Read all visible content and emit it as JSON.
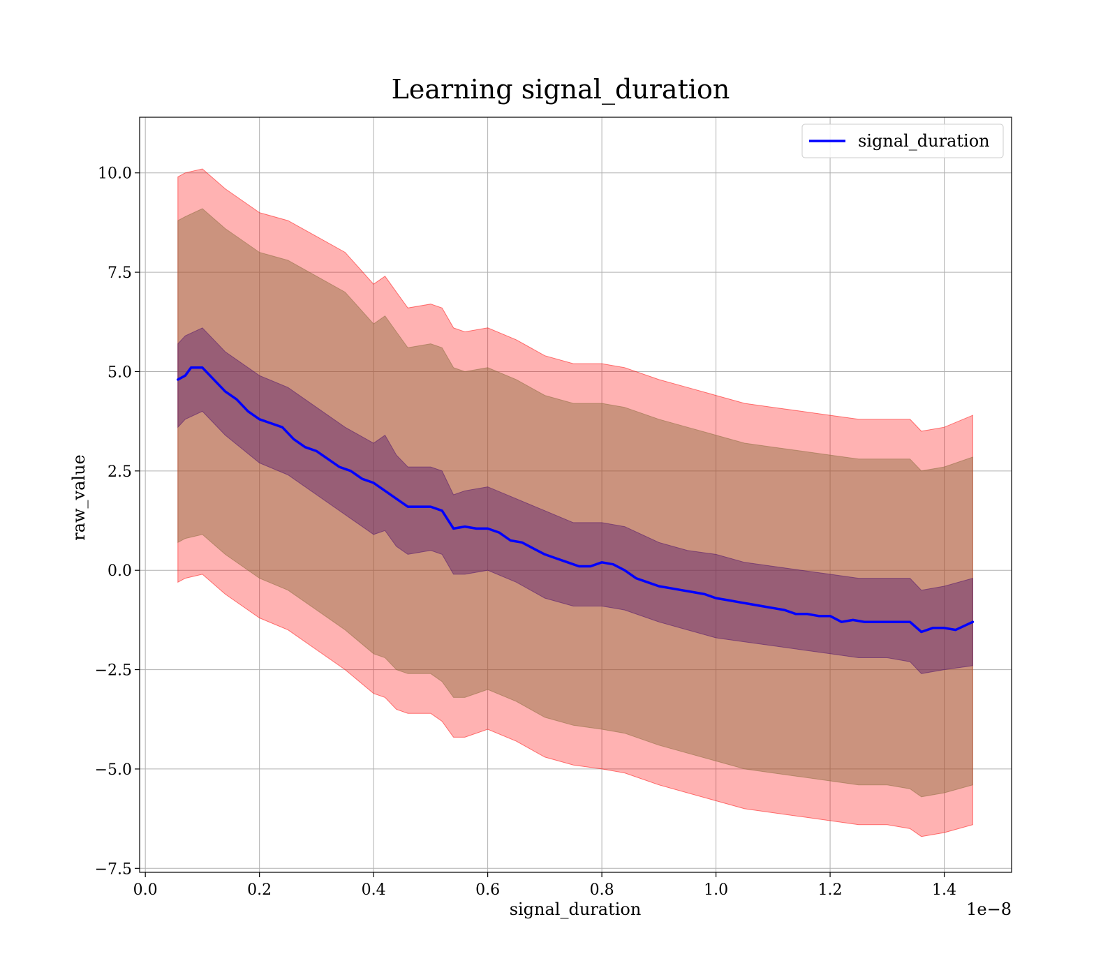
{
  "chart_data": {
    "type": "line",
    "title": "Learning signal_duration",
    "xlabel": "signal_duration",
    "ylabel": "raw_value",
    "x_offset_label": "1e−8",
    "xlim": [
      -0.01,
      1.518
    ],
    "ylim": [
      -7.6,
      11.4
    ],
    "x_ticks": [
      0.0,
      0.2,
      0.4,
      0.6,
      0.8,
      1.0,
      1.2,
      1.4
    ],
    "x_tick_labels": [
      "0.0",
      "0.2",
      "0.4",
      "0.6",
      "0.8",
      "1.0",
      "1.2",
      "1.4"
    ],
    "y_ticks": [
      -7.5,
      -5.0,
      -2.5,
      0.0,
      2.5,
      5.0,
      7.5,
      10.0
    ],
    "y_tick_labels": [
      "−7.5",
      "−5.0",
      "−2.5",
      "0.0",
      "2.5",
      "5.0",
      "7.5",
      "10.0"
    ],
    "grid": true,
    "legend": {
      "placement": "top-right",
      "entries": [
        "signal_duration"
      ]
    },
    "colors": {
      "mean_line": "#0000ff",
      "outer_band": "#ff0000",
      "middle_band": "#8b6c3e",
      "inner_band": "#4b0f6b",
      "grid": "#b0b0b0"
    },
    "series": [
      {
        "name": "signal_duration",
        "x": [
          0.057,
          0.07,
          0.08,
          0.1,
          0.12,
          0.14,
          0.16,
          0.18,
          0.2,
          0.22,
          0.24,
          0.26,
          0.28,
          0.3,
          0.32,
          0.34,
          0.36,
          0.38,
          0.4,
          0.42,
          0.44,
          0.46,
          0.48,
          0.5,
          0.52,
          0.54,
          0.56,
          0.58,
          0.6,
          0.62,
          0.64,
          0.66,
          0.68,
          0.7,
          0.72,
          0.74,
          0.76,
          0.78,
          0.8,
          0.82,
          0.84,
          0.86,
          0.88,
          0.9,
          0.92,
          0.94,
          0.96,
          0.98,
          1.0,
          1.02,
          1.04,
          1.06,
          1.08,
          1.1,
          1.12,
          1.14,
          1.16,
          1.18,
          1.2,
          1.22,
          1.24,
          1.26,
          1.28,
          1.3,
          1.32,
          1.34,
          1.36,
          1.38,
          1.4,
          1.42,
          1.45
        ],
        "y": [
          4.8,
          4.9,
          5.1,
          5.1,
          4.8,
          4.5,
          4.3,
          4.0,
          3.8,
          3.7,
          3.6,
          3.3,
          3.1,
          3.0,
          2.8,
          2.6,
          2.5,
          2.3,
          2.2,
          2.0,
          1.8,
          1.6,
          1.6,
          1.6,
          1.5,
          1.05,
          1.1,
          1.05,
          1.05,
          0.95,
          0.75,
          0.7,
          0.55,
          0.4,
          0.3,
          0.2,
          0.1,
          0.1,
          0.2,
          0.15,
          0.0,
          -0.2,
          -0.3,
          -0.4,
          -0.45,
          -0.5,
          -0.55,
          -0.6,
          -0.7,
          -0.75,
          -0.8,
          -0.85,
          -0.9,
          -0.95,
          -1.0,
          -1.1,
          -1.1,
          -1.15,
          -1.15,
          -1.3,
          -1.25,
          -1.3,
          -1.3,
          -1.3,
          -1.3,
          -1.3,
          -1.55,
          -1.45,
          -1.45,
          -1.5,
          -1.3
        ]
      }
    ],
    "bands": [
      {
        "label": "outer",
        "x": [
          0.057,
          0.07,
          0.1,
          0.14,
          0.2,
          0.25,
          0.3,
          0.35,
          0.4,
          0.42,
          0.44,
          0.46,
          0.5,
          0.52,
          0.54,
          0.56,
          0.6,
          0.65,
          0.7,
          0.75,
          0.8,
          0.84,
          0.9,
          0.95,
          1.0,
          1.05,
          1.1,
          1.15,
          1.2,
          1.25,
          1.3,
          1.34,
          1.36,
          1.4,
          1.45
        ],
        "upper": [
          9.9,
          10.0,
          10.1,
          9.6,
          9.0,
          8.8,
          8.4,
          8.0,
          7.2,
          7.4,
          7.0,
          6.6,
          6.7,
          6.6,
          6.1,
          6.0,
          6.1,
          5.8,
          5.4,
          5.2,
          5.2,
          5.1,
          4.8,
          4.6,
          4.4,
          4.2,
          4.1,
          4.0,
          3.9,
          3.8,
          3.8,
          3.8,
          3.5,
          3.6,
          3.9
        ],
        "lower": [
          -0.3,
          -0.2,
          -0.1,
          -0.6,
          -1.2,
          -1.5,
          -2.0,
          -2.5,
          -3.1,
          -3.2,
          -3.5,
          -3.6,
          -3.6,
          -3.8,
          -4.2,
          -4.2,
          -4.0,
          -4.3,
          -4.7,
          -4.9,
          -5.0,
          -5.1,
          -5.4,
          -5.6,
          -5.8,
          -6.0,
          -6.1,
          -6.2,
          -6.3,
          -6.4,
          -6.4,
          -6.5,
          -6.7,
          -6.6,
          -6.4
        ]
      },
      {
        "label": "middle",
        "x": [
          0.057,
          0.07,
          0.1,
          0.14,
          0.2,
          0.25,
          0.3,
          0.35,
          0.4,
          0.42,
          0.44,
          0.46,
          0.5,
          0.52,
          0.54,
          0.56,
          0.6,
          0.65,
          0.7,
          0.75,
          0.8,
          0.84,
          0.9,
          0.95,
          1.0,
          1.05,
          1.1,
          1.15,
          1.2,
          1.25,
          1.3,
          1.34,
          1.36,
          1.4,
          1.45
        ],
        "upper": [
          8.8,
          8.9,
          9.1,
          8.6,
          8.0,
          7.8,
          7.4,
          7.0,
          6.2,
          6.4,
          6.0,
          5.6,
          5.7,
          5.6,
          5.1,
          5.0,
          5.1,
          4.8,
          4.4,
          4.2,
          4.2,
          4.1,
          3.8,
          3.6,
          3.4,
          3.2,
          3.1,
          3.0,
          2.9,
          2.8,
          2.8,
          2.8,
          2.5,
          2.6,
          2.85
        ],
        "lower": [
          0.7,
          0.8,
          0.9,
          0.4,
          -0.2,
          -0.5,
          -1.0,
          -1.5,
          -2.1,
          -2.2,
          -2.5,
          -2.6,
          -2.6,
          -2.8,
          -3.2,
          -3.2,
          -3.0,
          -3.3,
          -3.7,
          -3.9,
          -4.0,
          -4.1,
          -4.4,
          -4.6,
          -4.8,
          -5.0,
          -5.1,
          -5.2,
          -5.3,
          -5.4,
          -5.4,
          -5.5,
          -5.7,
          -5.6,
          -5.4
        ]
      },
      {
        "label": "inner",
        "x": [
          0.057,
          0.07,
          0.1,
          0.14,
          0.2,
          0.25,
          0.3,
          0.35,
          0.4,
          0.42,
          0.44,
          0.46,
          0.5,
          0.52,
          0.54,
          0.56,
          0.6,
          0.65,
          0.7,
          0.75,
          0.8,
          0.84,
          0.9,
          0.95,
          1.0,
          1.05,
          1.1,
          1.15,
          1.2,
          1.25,
          1.3,
          1.34,
          1.36,
          1.4,
          1.45
        ],
        "upper": [
          5.7,
          5.9,
          6.1,
          5.5,
          4.9,
          4.6,
          4.1,
          3.6,
          3.2,
          3.4,
          2.9,
          2.6,
          2.6,
          2.5,
          1.9,
          2.0,
          2.1,
          1.8,
          1.5,
          1.2,
          1.2,
          1.1,
          0.7,
          0.5,
          0.4,
          0.2,
          0.1,
          0.0,
          -0.1,
          -0.2,
          -0.2,
          -0.2,
          -0.5,
          -0.4,
          -0.2
        ],
        "lower": [
          3.6,
          3.8,
          4.0,
          3.4,
          2.7,
          2.4,
          1.9,
          1.4,
          0.9,
          1.0,
          0.6,
          0.4,
          0.5,
          0.4,
          -0.1,
          -0.1,
          0.0,
          -0.3,
          -0.7,
          -0.9,
          -0.9,
          -1.0,
          -1.3,
          -1.5,
          -1.7,
          -1.8,
          -1.9,
          -2.0,
          -2.1,
          -2.2,
          -2.2,
          -2.3,
          -2.6,
          -2.5,
          -2.4
        ]
      }
    ]
  }
}
